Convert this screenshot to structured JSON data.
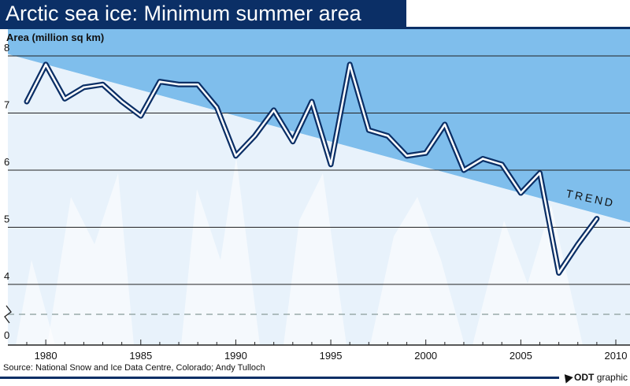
{
  "title": "Arctic sea ice: Minimum summer area",
  "source": "Source: National Snow and Ice Data Centre, Colorado; Andy Tulloch",
  "credit": {
    "brand": "ODT",
    "text": "graphic"
  },
  "colors": {
    "title_bg": "#0b2f66",
    "line": "#0b2f66",
    "trend_fill": "#6fb6ea",
    "background": "#dbecf8"
  },
  "chart_data": {
    "type": "line",
    "title": "Arctic sea ice: Minimum summer area",
    "xlabel": "",
    "ylabel": "Area (million sq km)",
    "xlim": [
      1978.9,
      2010
    ],
    "ylim": [
      0,
      8
    ],
    "y_axis_break": true,
    "y_ticks": [
      0,
      4,
      5,
      6,
      7,
      8
    ],
    "x_ticks": [
      1980,
      1985,
      1990,
      1995,
      2000,
      2005,
      2010
    ],
    "grid": true,
    "series": [
      {
        "x": [
          1979,
          1980,
          1981,
          1982,
          1983,
          1984,
          1985,
          1986,
          1987,
          1988,
          1989,
          1990,
          1991,
          1992,
          1993,
          1994,
          1995,
          1996,
          1997,
          1998,
          1999,
          2000,
          2001,
          2002,
          2003,
          2004,
          2005,
          2006,
          2007,
          2008,
          2009
        ],
        "values": [
          7.2,
          7.85,
          7.25,
          7.45,
          7.5,
          7.2,
          6.95,
          7.55,
          7.5,
          7.5,
          7.1,
          6.25,
          6.6,
          7.05,
          6.5,
          7.2,
          6.1,
          7.85,
          6.7,
          6.6,
          6.25,
          6.3,
          6.8,
          6.0,
          6.2,
          6.1,
          5.6,
          5.95,
          4.2,
          4.7,
          5.15
        ]
      }
    ],
    "trend": {
      "label": "TREND",
      "start": [
        1978.9,
        7.95
      ],
      "end": [
        2010,
        5.15
      ]
    }
  }
}
